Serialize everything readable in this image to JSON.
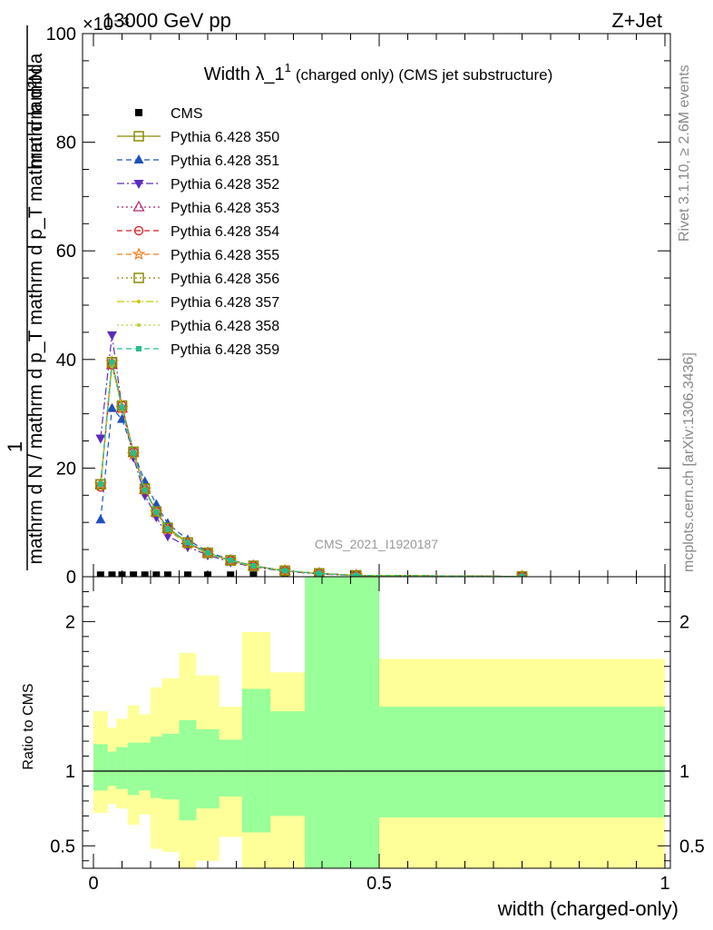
{
  "header": {
    "left": "13000 GeV pp",
    "right": "Z+Jet",
    "exponent": "×10⁻³"
  },
  "side_texts": {
    "rivet": "Rivet 3.1.10, ≥ 2.6M events",
    "mcplots": "mcplots.cern.ch [arXiv:1306.3436]"
  },
  "watermark": "CMS_2021_I1920187",
  "colors": {
    "cms": "#000000",
    "band_inner": "#99ff99",
    "band_outer": "#ffff99",
    "p350": "#8b8b00",
    "p351": "#1f4fbf",
    "p352": "#5b2bbf",
    "p353": "#b5206e",
    "p354": "#d6191b",
    "p355": "#f07c1a",
    "p356": "#8b8b00",
    "p357": "#c8c800",
    "p358": "#b4d43a",
    "p359": "#22c08c"
  },
  "chart_data": [
    {
      "type": "line",
      "title": "Width λ_1¹ (charged only) (CMS jet substructure)",
      "title_main": "Width λ_1",
      "title_sup": "1",
      "title_rest": "(charged only) (CMS jet substructure)",
      "ylabel_numerator": "mathrm d²N",
      "ylabel_denominator": "mathrm d N / mathrm d p_T mathrm d p_T mathrm d lambda",
      "ylabel_one": "1",
      "xlim": [
        0,
        1
      ],
      "ylim": [
        0,
        100
      ],
      "y_scale_note": "×10⁻³",
      "yticks": [
        0,
        20,
        40,
        60,
        80,
        100
      ],
      "x": [
        0.0125,
        0.0325,
        0.05,
        0.07,
        0.09,
        0.11,
        0.13,
        0.165,
        0.2,
        0.24,
        0.28,
        0.335,
        0.395,
        0.46,
        0.75
      ],
      "series": [
        {
          "name": "CMS",
          "color_key": "cms",
          "marker": "filled-square",
          "dash": "none",
          "values": [
            0.3,
            0.3,
            0.3,
            0.3,
            0.3,
            0.3,
            0.3,
            0.3,
            0.3,
            0.3,
            0.3,
            0.3,
            0.3,
            0.3,
            0.3
          ]
        },
        {
          "name": "Pythia 6.428 350",
          "color_key": "p350",
          "marker": "open-square",
          "dash": "solid",
          "values": [
            17,
            39.5,
            31.5,
            23,
            16.2,
            12,
            9,
            6.3,
            4.4,
            3.0,
            2.0,
            1.1,
            0.6,
            0.25,
            0.05
          ]
        },
        {
          "name": "Pythia 6.428 351",
          "color_key": "p351",
          "marker": "filled-triangle-up",
          "dash": "dashed",
          "values": [
            10.5,
            31,
            29,
            23,
            17.5,
            13.3,
            9.8,
            6.8,
            4.6,
            3.1,
            2.0,
            1.1,
            0.6,
            0.25,
            0.05
          ]
        },
        {
          "name": "Pythia 6.428 352",
          "color_key": "p352",
          "marker": "filled-triangle-down",
          "dash": "dashdot",
          "values": [
            25.5,
            44.5,
            31,
            22,
            15,
            11,
            7.5,
            5.5,
            4.0,
            2.7,
            1.8,
            1.0,
            0.5,
            0.2,
            0.05
          ]
        },
        {
          "name": "Pythia 6.428 353",
          "color_key": "p353",
          "marker": "open-triangle-up",
          "dash": "dotted",
          "values": [
            17,
            39,
            31,
            22.8,
            16,
            11.8,
            8.8,
            6.2,
            4.3,
            3.0,
            2.0,
            1.1,
            0.6,
            0.25,
            0.05
          ]
        },
        {
          "name": "Pythia 6.428 354",
          "color_key": "p354",
          "marker": "open-circle",
          "dash": "dashed",
          "values": [
            16.5,
            39,
            31.5,
            23,
            16,
            12,
            8.8,
            6.2,
            4.4,
            3.0,
            2.0,
            1.1,
            0.6,
            0.25,
            0.05
          ]
        },
        {
          "name": "Pythia 6.428 355",
          "color_key": "p355",
          "marker": "open-star",
          "dash": "dashed",
          "values": [
            17,
            39.5,
            31,
            22.5,
            16,
            11.8,
            8.6,
            6.0,
            4.3,
            2.9,
            1.9,
            1.1,
            0.6,
            0.25,
            0.05
          ]
        },
        {
          "name": "Pythia 6.428 356",
          "color_key": "p356",
          "marker": "open-square",
          "dash": "dotted",
          "values": [
            17,
            39.5,
            31.5,
            23,
            16.2,
            12,
            9,
            6.3,
            4.4,
            3.0,
            2.0,
            1.1,
            0.6,
            0.25,
            0.05
          ]
        },
        {
          "name": "Pythia 6.428 357",
          "color_key": "p357",
          "marker": "small-dot",
          "dash": "dashdot",
          "values": [
            17,
            39,
            31,
            22.8,
            16,
            11.8,
            8.7,
            6.2,
            4.3,
            2.9,
            1.9,
            1.1,
            0.6,
            0.25,
            0.05
          ]
        },
        {
          "name": "Pythia 6.428 358",
          "color_key": "p358",
          "marker": "small-dot",
          "dash": "dotted",
          "values": [
            17,
            39.2,
            31.2,
            22.8,
            16.1,
            11.9,
            8.8,
            6.2,
            4.3,
            3.0,
            2.0,
            1.1,
            0.6,
            0.25,
            0.05
          ]
        },
        {
          "name": "Pythia 6.428 359",
          "color_key": "p359",
          "marker": "filled-square-small",
          "dash": "dashed",
          "values": [
            17,
            39.5,
            31.2,
            22.8,
            16,
            11.9,
            8.8,
            6.3,
            4.4,
            3.0,
            2.0,
            1.1,
            0.6,
            0.25,
            0.05
          ]
        }
      ]
    },
    {
      "type": "area",
      "ylabel": "Ratio to CMS",
      "xlabel": "width (charged-only)",
      "xlim": [
        0,
        1
      ],
      "ylim": [
        0.35,
        2.3
      ],
      "xticks": [
        0,
        0.5,
        1
      ],
      "yticks": [
        0.5,
        1,
        2
      ],
      "reference_line": 1,
      "bins": [
        {
          "x0": 0.0,
          "x1": 0.025,
          "inner": [
            0.87,
            1.18
          ],
          "outer": [
            0.72,
            1.4
          ]
        },
        {
          "x0": 0.025,
          "x1": 0.04,
          "inner": [
            0.9,
            1.13
          ],
          "outer": [
            0.78,
            1.29
          ]
        },
        {
          "x0": 0.04,
          "x1": 0.06,
          "inner": [
            0.88,
            1.16
          ],
          "outer": [
            0.75,
            1.35
          ]
        },
        {
          "x0": 0.06,
          "x1": 0.08,
          "inner": [
            0.84,
            1.19
          ],
          "outer": [
            0.64,
            1.44
          ]
        },
        {
          "x0": 0.08,
          "x1": 0.1,
          "inner": [
            0.87,
            1.19
          ],
          "outer": [
            0.71,
            1.38
          ]
        },
        {
          "x0": 0.1,
          "x1": 0.12,
          "inner": [
            0.82,
            1.23
          ],
          "outer": [
            0.48,
            1.56
          ]
        },
        {
          "x0": 0.12,
          "x1": 0.15,
          "inner": [
            0.81,
            1.25
          ],
          "outer": [
            0.46,
            1.62
          ]
        },
        {
          "x0": 0.15,
          "x1": 0.18,
          "inner": [
            0.67,
            1.34
          ],
          "outer": [
            0.35,
            1.79
          ]
        },
        {
          "x0": 0.18,
          "x1": 0.22,
          "inner": [
            0.75,
            1.28
          ],
          "outer": [
            0.4,
            1.64
          ]
        },
        {
          "x0": 0.22,
          "x1": 0.26,
          "inner": [
            0.83,
            1.21
          ],
          "outer": [
            0.56,
            1.43
          ]
        },
        {
          "x0": 0.26,
          "x1": 0.31,
          "inner": [
            0.59,
            1.55
          ],
          "outer": [
            0.35,
            1.93
          ]
        },
        {
          "x0": 0.31,
          "x1": 0.37,
          "inner": [
            0.7,
            1.4
          ],
          "outer": [
            0.35,
            1.66
          ]
        },
        {
          "x0": 0.37,
          "x1": 0.43,
          "inner": [
            0.35,
            2.3
          ],
          "outer": [
            0.35,
            2.3
          ]
        },
        {
          "x0": 0.43,
          "x1": 0.5,
          "inner": [
            0.35,
            2.3
          ],
          "outer": [
            0.35,
            2.3
          ]
        },
        {
          "x0": 0.5,
          "x1": 1.0,
          "inner": [
            0.69,
            1.43
          ],
          "outer": [
            0.35,
            1.75
          ]
        }
      ]
    }
  ]
}
